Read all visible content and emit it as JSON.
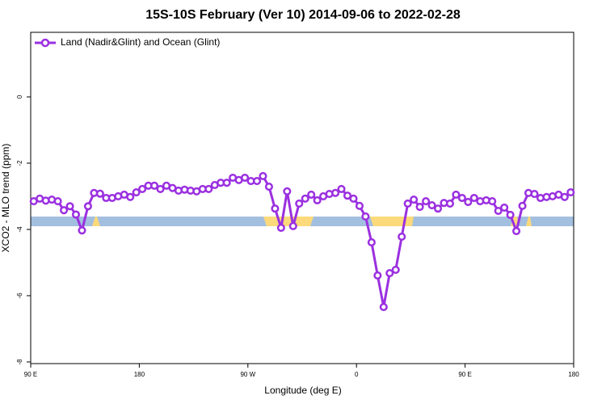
{
  "chart_data": {
    "type": "line",
    "title": "15S-10S February (Ver 10)   2014-09-06 to 2022-02-28",
    "xlabel": "Longitude (deg E)",
    "ylabel": "XCO2 - MLO trend (ppm)",
    "xlim": [
      90,
      540
    ],
    "ylim": [
      -8.05,
      1.95
    ],
    "xticks": [
      {
        "value": 90,
        "label": "90 E"
      },
      180,
      {
        "value": 270,
        "label": "90 W"
      },
      {
        "value": 360,
        "label": "0"
      },
      {
        "value": 450,
        "label": "90 E"
      },
      {
        "value": 540,
        "label": "180"
      }
    ],
    "yticks": [
      0,
      -2,
      -4,
      -6,
      -8
    ],
    "legend": "top-left",
    "x": [
      92.5,
      97.5,
      102.5,
      107.5,
      112.5,
      117.5,
      122.5,
      127.5,
      132.5,
      137.5,
      142.5,
      147.5,
      152.5,
      157.5,
      162.5,
      167.5,
      172.5,
      177.5,
      182.5,
      187.5,
      192.5,
      197.5,
      202.5,
      207.5,
      212.5,
      217.5,
      222.5,
      227.5,
      232.5,
      237.5,
      242.5,
      247.5,
      252.5,
      257.5,
      262.5,
      267.5,
      272.5,
      277.5,
      282.5,
      287.5,
      292.5,
      297.5,
      302.5,
      307.5,
      312.5,
      317.5,
      322.5,
      327.5,
      332.5,
      337.5,
      342.5,
      347.5,
      352.5,
      357.5,
      362.5,
      367.5,
      372.5,
      377.5,
      382.5,
      387.5,
      392.5,
      397.5,
      402.5,
      407.5,
      412.5,
      417.5,
      422.5,
      427.5,
      432.5,
      437.5,
      442.5,
      447.5,
      452.5,
      457.5,
      462.5,
      467.5,
      472.5,
      477.5,
      482.5,
      487.5,
      492.5,
      497.5,
      502.5,
      507.5,
      512.5,
      517.5,
      522.5,
      527.5,
      532.5,
      537.5
    ],
    "series": [
      {
        "name": "Land (Nadir&Glint) and Ocean (Glint)",
        "color": "#9b30e0",
        "values": [
          -3.15,
          -3.07,
          -3.13,
          -3.1,
          -3.15,
          -3.42,
          -3.3,
          -3.55,
          -4.03,
          -3.3,
          -2.9,
          -2.92,
          -3.05,
          -3.05,
          -3.0,
          -2.95,
          -3.02,
          -2.88,
          -2.78,
          -2.68,
          -2.68,
          -2.78,
          -2.68,
          -2.75,
          -2.83,
          -2.8,
          -2.83,
          -2.85,
          -2.78,
          -2.78,
          -2.66,
          -2.59,
          -2.59,
          -2.44,
          -2.51,
          -2.44,
          -2.54,
          -2.54,
          -2.39,
          -2.71,
          -3.37,
          -3.95,
          -2.85,
          -3.9,
          -3.22,
          -3.07,
          -2.95,
          -3.12,
          -3.0,
          -2.93,
          -2.9,
          -2.78,
          -2.98,
          -3.07,
          -3.29,
          -3.61,
          -4.39,
          -5.39,
          -6.34,
          -5.32,
          -5.22,
          -4.22,
          -3.22,
          -3.1,
          -3.32,
          -3.15,
          -3.27,
          -3.37,
          -3.2,
          -3.22,
          -2.95,
          -3.05,
          -3.17,
          -3.05,
          -3.15,
          -3.12,
          -3.15,
          -3.44,
          -3.34,
          -3.56,
          -4.05,
          -3.29,
          -2.9,
          -2.93,
          -3.05,
          -3.02,
          -3.0,
          -2.95,
          -3.02,
          -2.88
        ]
      }
    ]
  }
}
